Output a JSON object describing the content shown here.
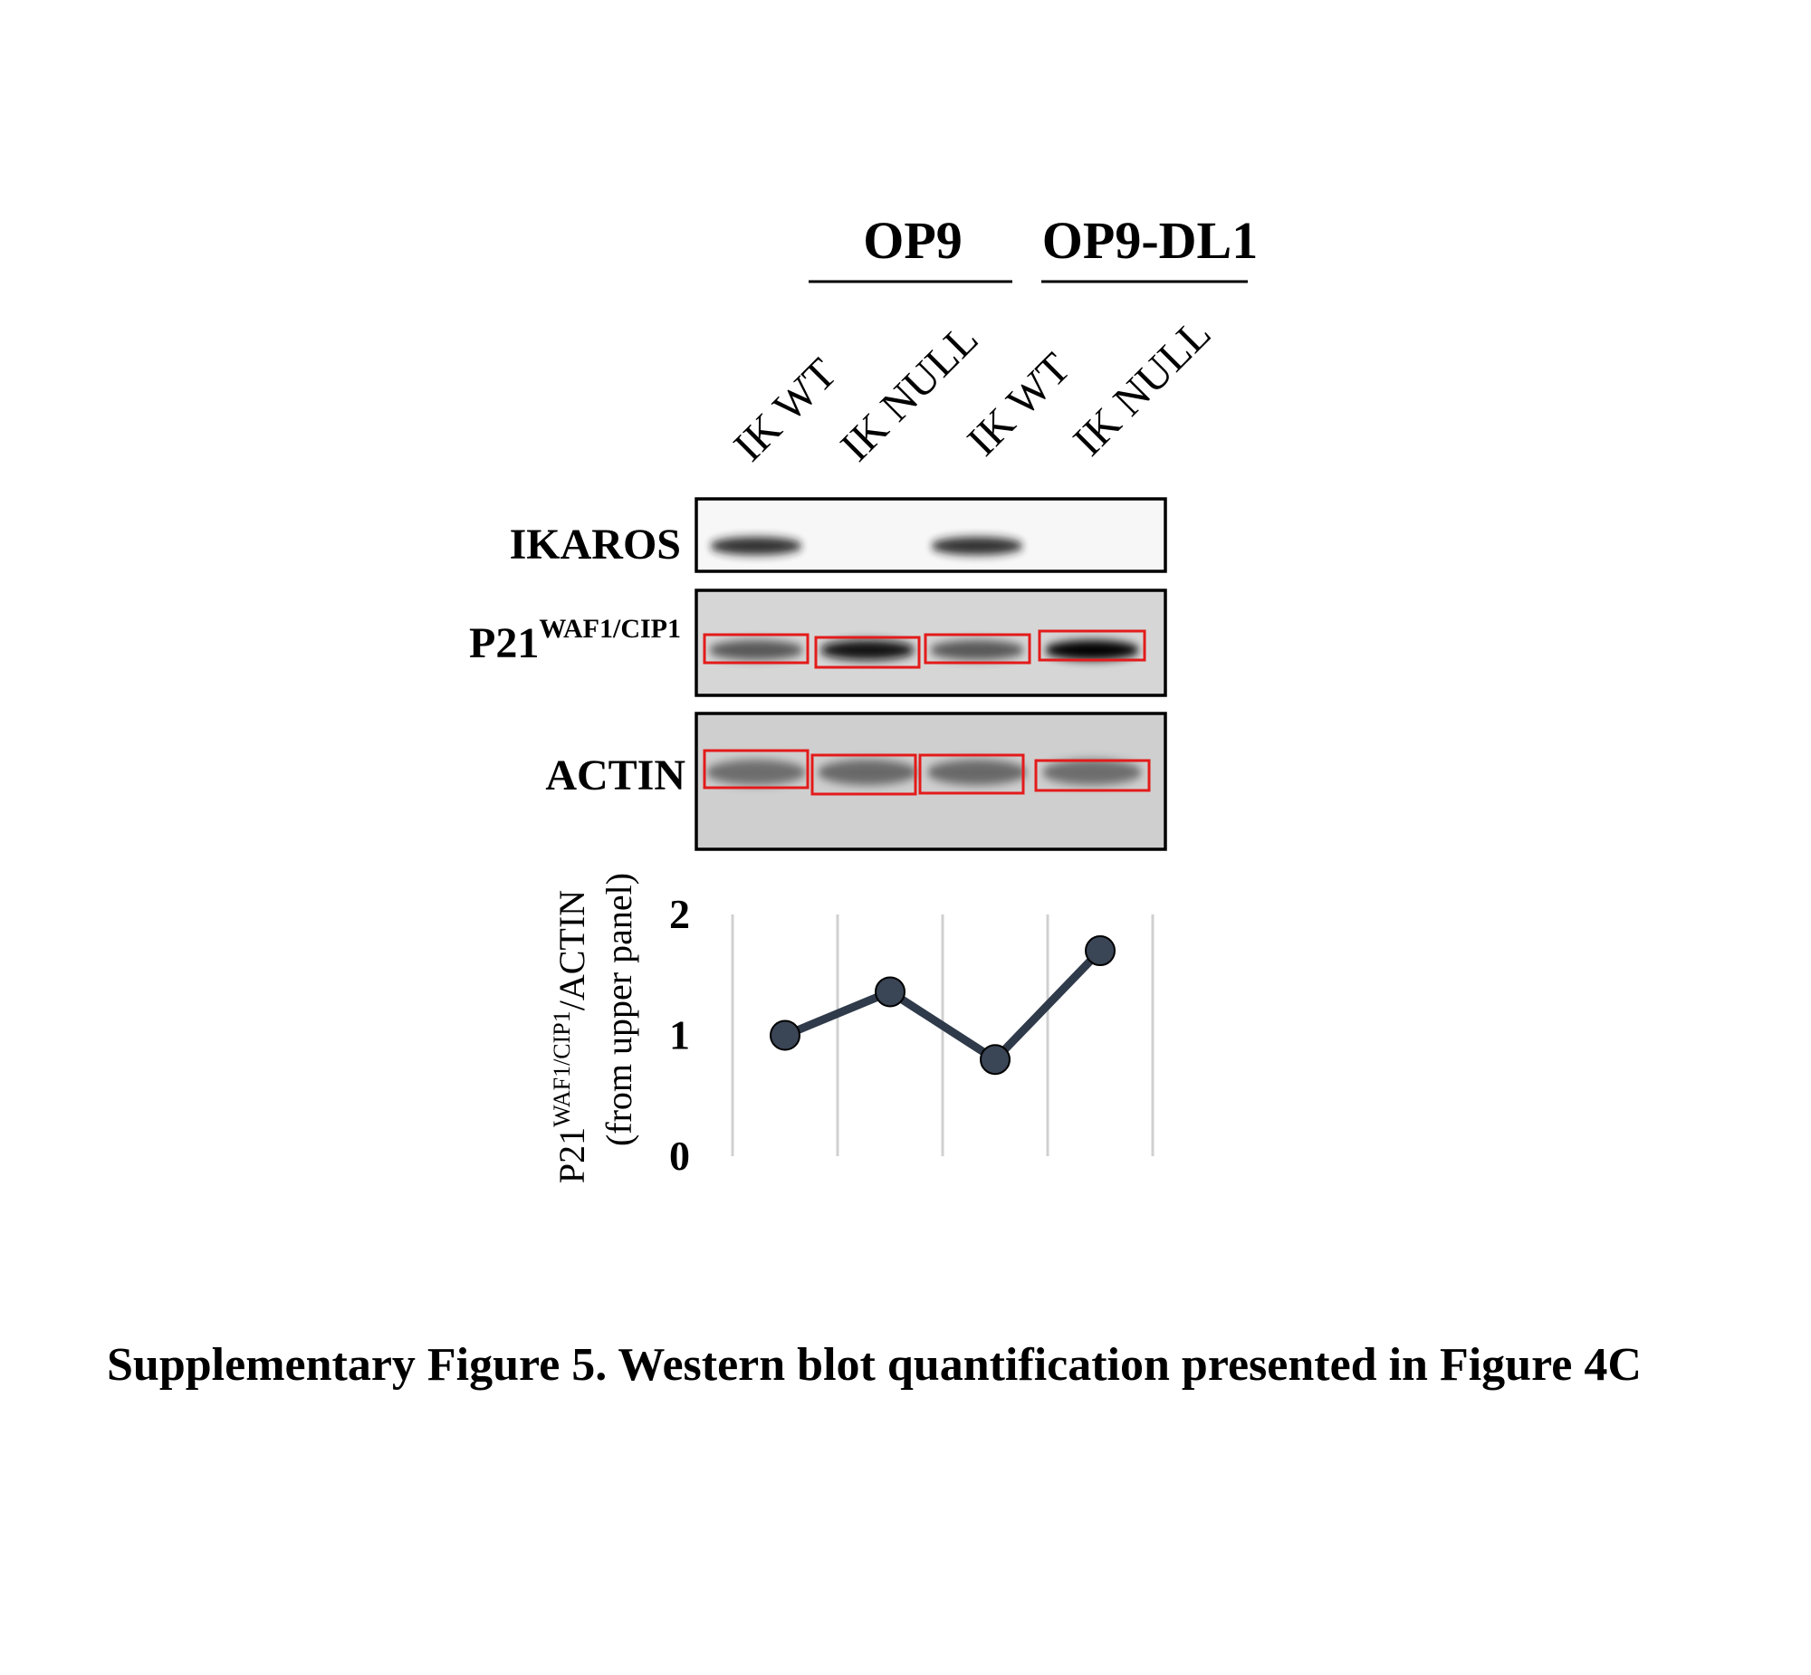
{
  "figure": {
    "groups": [
      "OP9",
      "OP9-DL1"
    ],
    "lanes": [
      "IK WT",
      "IK NULL",
      "IK WT",
      "IK NULL"
    ],
    "blots": [
      {
        "label": "IKAROS",
        "band_intensity": [
          0.85,
          0.0,
          0.85,
          0.0
        ]
      },
      {
        "label_main": "P21",
        "label_sup": "WAF1/CIP1",
        "band_intensity": [
          0.7,
          0.95,
          0.7,
          0.98
        ]
      },
      {
        "label": "ACTIN",
        "band_intensity": [
          0.6,
          0.62,
          0.62,
          0.6
        ]
      }
    ],
    "quant_box_color": "#e31b1b"
  },
  "chart_data": {
    "type": "line",
    "categories": [
      "IK WT",
      "IK NULL",
      "IK WT",
      "IK NULL"
    ],
    "series": [
      {
        "values": [
          1.0,
          1.36,
          0.8,
          1.7
        ]
      }
    ],
    "ylabel_line1_main": "P21",
    "ylabel_line1_sup": "WAF1/CIP1",
    "ylabel_line1_tail": "/ACTIN",
    "ylabel_line2": "(from upper panel)",
    "ylim": [
      0,
      2
    ],
    "yticks": [
      "0",
      "1",
      "2"
    ],
    "grid": "vertical",
    "line_color": "#2f3a4a",
    "marker_color": "#3a4556"
  },
  "caption": "Supplementary Figure 5. Western blot quantification presented in Figure 4C"
}
